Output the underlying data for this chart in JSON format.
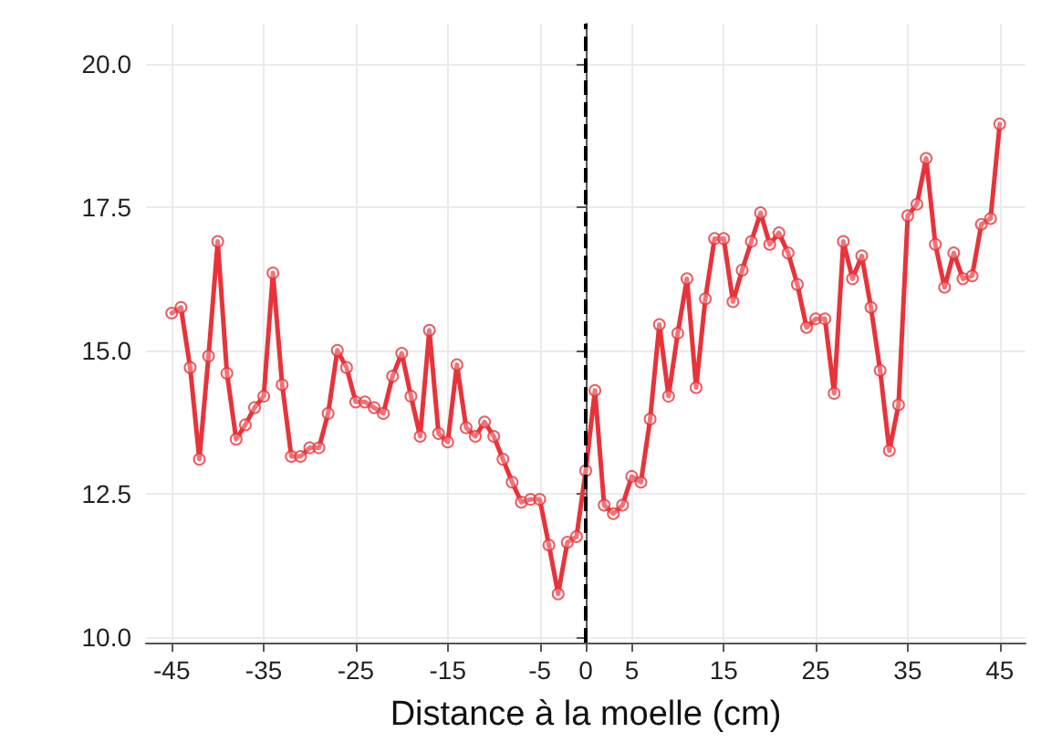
{
  "chart_data": {
    "type": "line",
    "xlabel": "Distance à la moelle (cm)",
    "x": [
      -45,
      -44,
      -43,
      -42,
      -41,
      -40,
      -39,
      -38,
      -37,
      -36,
      -35,
      -34,
      -33,
      -32,
      -31,
      -30,
      -29,
      -28,
      -27,
      -26,
      -25,
      -24,
      -23,
      -22,
      -21,
      -20,
      -19,
      -18,
      -17,
      -16,
      -15,
      -14,
      -13,
      -12,
      -11,
      -10,
      -9,
      -8,
      -7,
      -6,
      -5,
      -4,
      -3,
      -2,
      -1,
      0,
      1,
      2,
      3,
      4,
      5,
      6,
      7,
      8,
      9,
      10,
      11,
      12,
      13,
      14,
      15,
      16,
      17,
      18,
      19,
      20,
      21,
      22,
      23,
      24,
      25,
      26,
      27,
      28,
      29,
      30,
      31,
      32,
      33,
      34,
      35,
      36,
      37,
      38,
      39,
      40,
      41,
      42,
      43,
      44,
      45
    ],
    "series": [
      {
        "color": "#e8333a",
        "values": [
          15.65,
          15.75,
          14.7,
          13.1,
          14.9,
          16.9,
          14.6,
          13.45,
          13.7,
          14.0,
          14.2,
          16.35,
          14.4,
          13.15,
          13.15,
          13.3,
          13.3,
          13.9,
          15.0,
          14.7,
          14.1,
          14.1,
          14.0,
          13.9,
          14.55,
          14.95,
          14.2,
          13.5,
          15.35,
          13.55,
          13.4,
          14.75,
          13.65,
          13.5,
          13.75,
          13.5,
          13.1,
          12.7,
          12.35,
          12.4,
          12.4,
          11.6,
          10.75,
          11.65,
          11.75,
          12.9,
          14.3,
          12.3,
          12.15,
          12.3,
          12.8,
          12.7,
          13.8,
          15.45,
          14.2,
          15.3,
          16.25,
          14.35,
          15.9,
          16.95,
          16.95,
          15.85,
          16.4,
          16.9,
          17.4,
          16.85,
          17.05,
          16.7,
          16.15,
          15.4,
          15.55,
          15.55,
          14.25,
          16.9,
          16.25,
          16.65,
          15.75,
          14.65,
          13.25,
          14.05,
          17.35,
          17.55,
          18.35,
          16.85,
          16.1,
          16.7,
          16.25,
          16.3,
          17.2,
          17.3,
          18.95
        ]
      }
    ],
    "xlim": [
      -47.8,
      47.8
    ],
    "xticks": [
      -45,
      -35,
      -25,
      -15,
      -5,
      0,
      5,
      15,
      25,
      35,
      45
    ],
    "ylim": [
      9.9,
      20.7
    ],
    "yticks": [
      {
        "value": 10,
        "label": "10.0"
      },
      {
        "value": 12.5,
        "label": "12.5"
      },
      {
        "value": 15,
        "label": "15.0"
      },
      {
        "value": 17.5,
        "label": "17.5"
      },
      {
        "value": 20,
        "label": "20.0"
      }
    ],
    "ref_lines": [
      {
        "axis": "x",
        "value": 0,
        "color": "#000000",
        "line_style": "dashed"
      }
    ],
    "grid": true,
    "marker": "circle",
    "line_style": "solid"
  }
}
